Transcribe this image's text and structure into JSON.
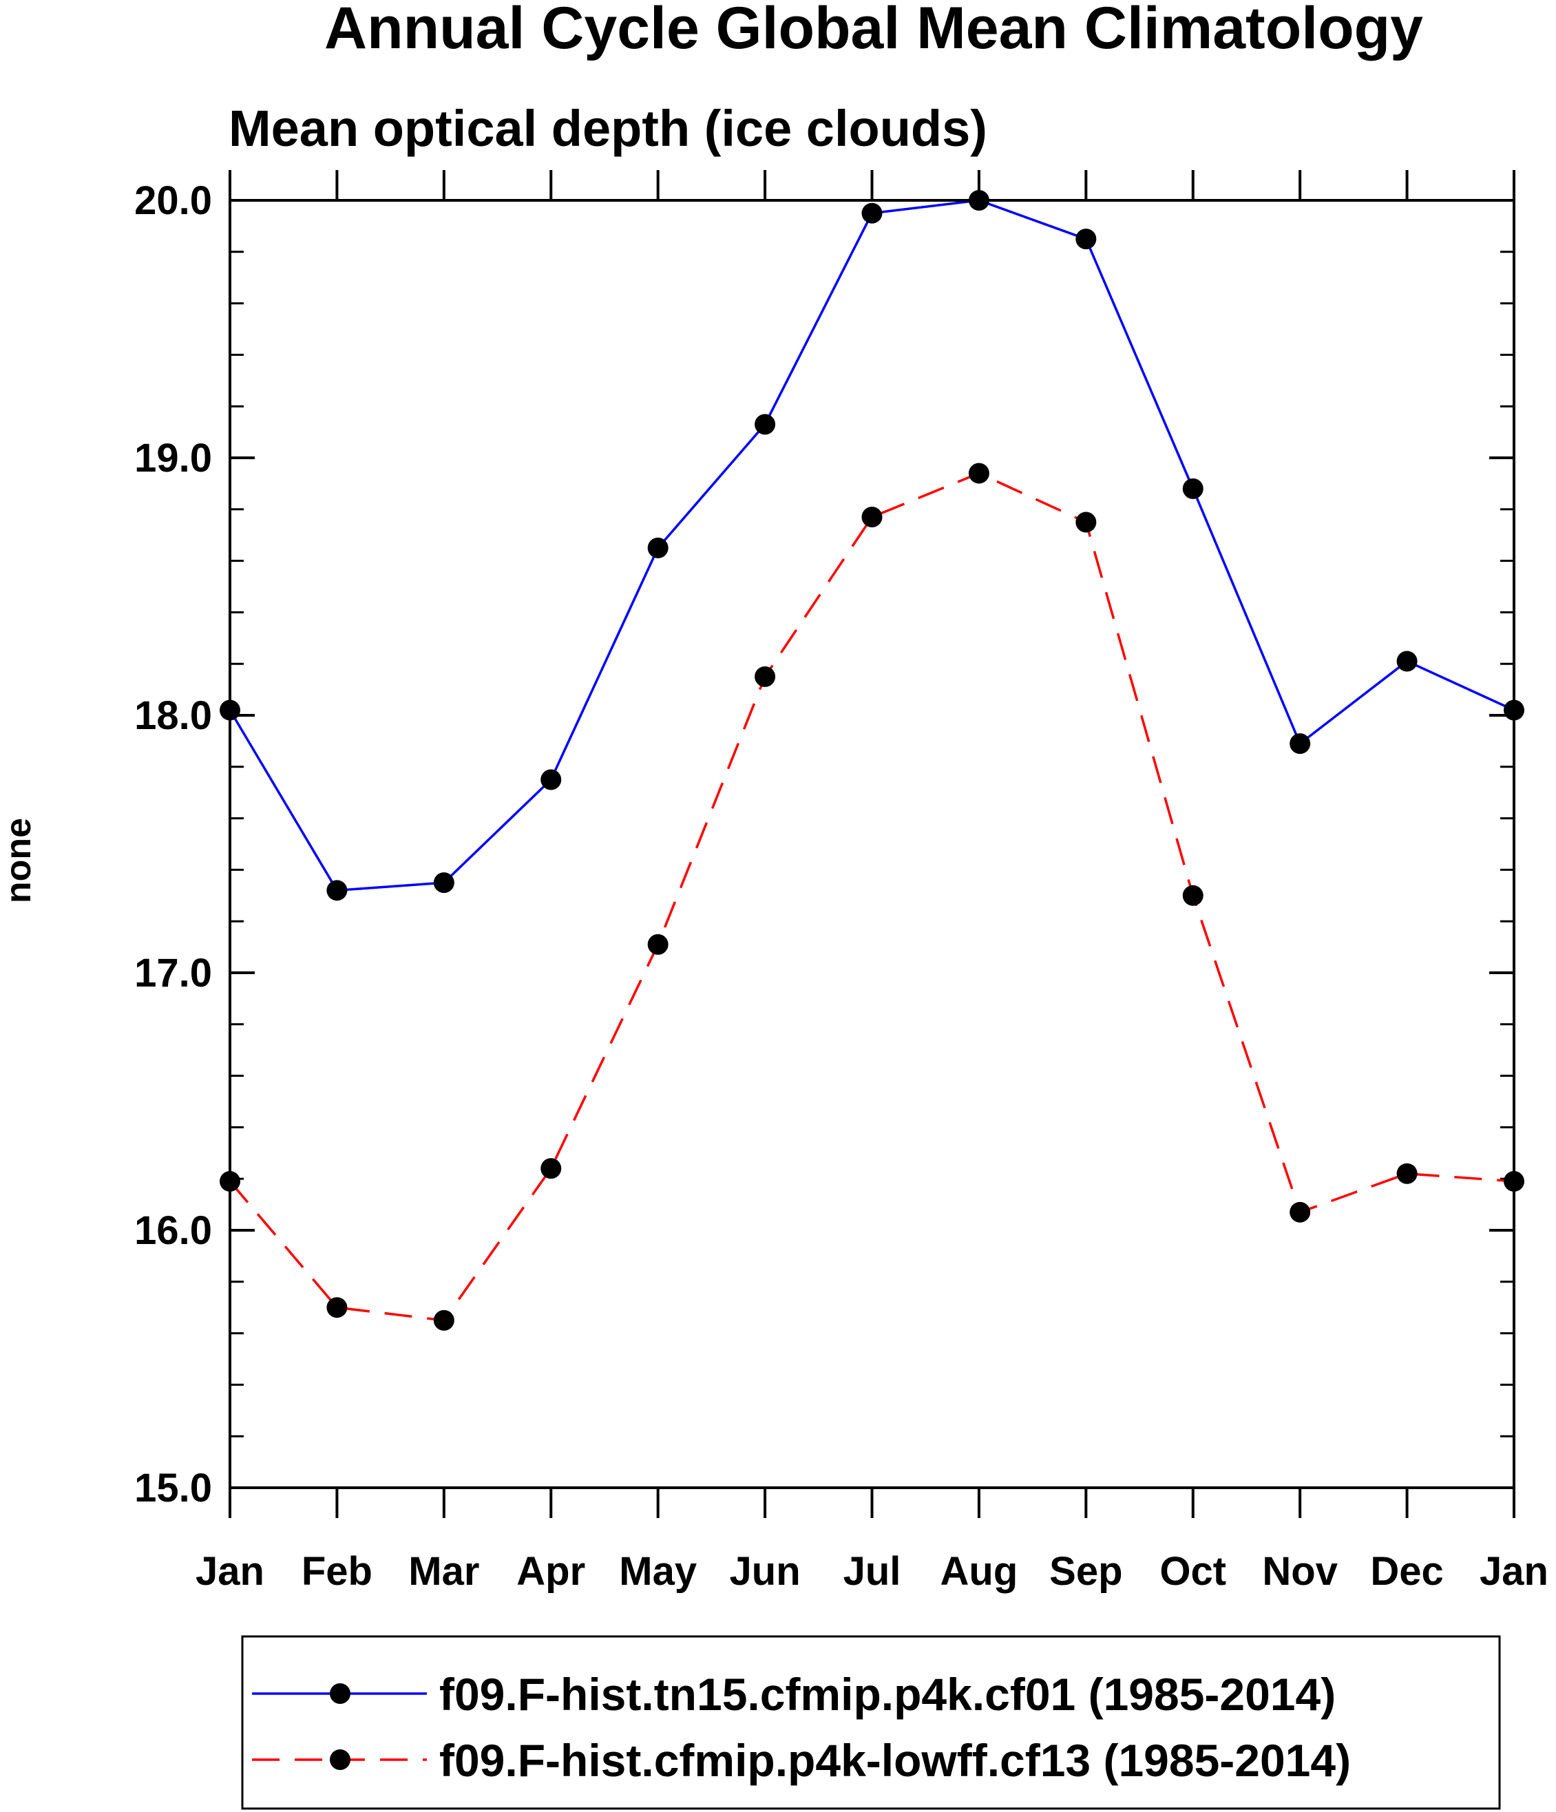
{
  "chart_data": {
    "type": "line",
    "title": "Annual Cycle Global Mean Climatology",
    "subtitle": "Mean optical depth (ice clouds)",
    "xlabel": "",
    "ylabel": "none",
    "ylim": [
      15.0,
      20.0
    ],
    "yticks": [
      "15.0",
      "16.0",
      "17.0",
      "18.0",
      "19.0",
      "20.0"
    ],
    "categories": [
      "Jan",
      "Feb",
      "Mar",
      "Apr",
      "May",
      "Jun",
      "Jul",
      "Aug",
      "Sep",
      "Oct",
      "Nov",
      "Dec",
      "Jan"
    ],
    "grid": false,
    "legend_position": "bottom",
    "series": [
      {
        "name": "f09.F-hist.tn15.cfmip.p4k.cf01 (1985-2014)",
        "color": "#0000ff",
        "line_style": "solid",
        "marker": "filled-circle",
        "values": [
          18.02,
          17.32,
          17.35,
          17.75,
          18.65,
          19.13,
          19.95,
          20.0,
          19.85,
          18.88,
          17.89,
          18.21,
          18.02
        ]
      },
      {
        "name": "f09.F-hist.cfmip.p4k-lowff.cf13 (1985-2014)",
        "color": "#ff0000",
        "line_style": "dashed",
        "marker": "filled-circle",
        "values": [
          16.19,
          15.7,
          15.65,
          16.24,
          17.11,
          18.15,
          18.77,
          18.94,
          18.75,
          17.3,
          16.07,
          16.22,
          16.19
        ]
      }
    ]
  }
}
